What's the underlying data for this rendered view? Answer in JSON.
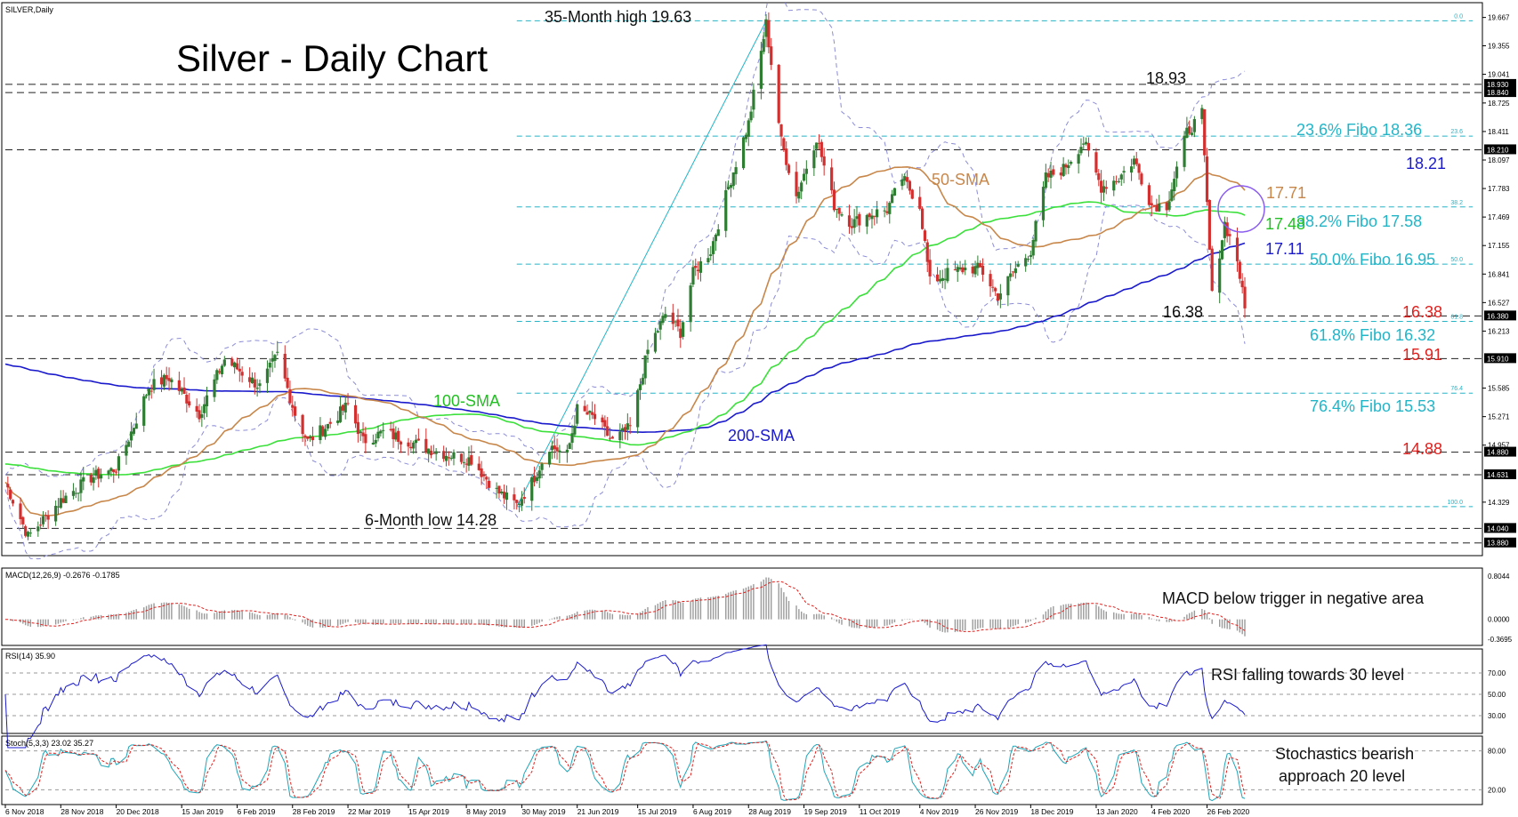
{
  "chart_data": {
    "type": "line",
    "symbol_label": "SILVER,Daily",
    "title": "Silver - Daily Chart",
    "colors": {
      "up_candle": "#2e7d32",
      "down_candle": "#d32f2f",
      "sma50": "#c8874a",
      "sma100": "#3be03b",
      "sma200": "#1a1acc",
      "bollinger": "#8c8cd6",
      "fibo": "#22b5c8",
      "level": "#222222",
      "red_label": "#e0201d"
    },
    "x_ticks": [
      "6 Nov 2018",
      "28 Nov 2018",
      "20 Dec 2018",
      "15 Jan 2019",
      "6 Feb 2019",
      "28 Feb 2019",
      "22 Mar 2019",
      "15 Apr 2019",
      "8 May 2019",
      "30 May 2019",
      "21 Jun 2019",
      "15 Jul 2019",
      "6 Aug 2019",
      "28 Aug 2019",
      "19 Sep 2019",
      "11 Oct 2019",
      "4 Nov 2019",
      "26 Nov 2019",
      "18 Dec 2019",
      "13 Jan 2020",
      "4 Feb 2020",
      "26 Feb 2020"
    ],
    "price_axis_ticks": [
      "19.667",
      "19.355",
      "19.041",
      "18.725",
      "18.411",
      "18.097",
      "17.783",
      "17.469",
      "17.155",
      "16.841",
      "16.527",
      "16.213",
      "15.585",
      "15.271",
      "14.957",
      "14.329"
    ],
    "price_range": [
      13.75,
      19.82
    ],
    "price_tags": [
      "18.930",
      "18.840",
      "18.210",
      "16.380",
      "15.910",
      "14.880",
      "14.631",
      "14.040",
      "13.880"
    ],
    "horizontal_levels": [
      18.93,
      18.84,
      18.21,
      16.38,
      15.91,
      14.88,
      14.631,
      14.04,
      13.88
    ],
    "fibo_levels": [
      {
        "tag": "0.0",
        "value": 19.63
      },
      {
        "tag": "23.6",
        "value": 18.36
      },
      {
        "tag": "38.2",
        "value": 17.58
      },
      {
        "tag": "50.0",
        "value": 16.95
      },
      {
        "tag": "61.8",
        "value": 16.32
      },
      {
        "tag": "76.4",
        "value": 15.53
      },
      {
        "tag": "100.0",
        "value": 14.28
      }
    ],
    "annotations": {
      "high": "35-Month high 19.63",
      "low": "6-Month low 14.28",
      "peak": "18.93",
      "fibo236": "23.6% Fibo 18.36",
      "lvl1821": "18.21",
      "sma50_val": "17.71",
      "fibo382": "38.2% Fibo 17.58",
      "sma100_val": "17.48",
      "sma200_val": "17.11",
      "fibo50": "50.0% Fibo 16.95",
      "support_left": "16.38",
      "support_right": "16.38",
      "fibo618": "61.8% Fibo 16.32",
      "lvl1591": "15.91",
      "fibo764": "76.4% Fibo 15.53",
      "lvl1488": "14.88",
      "sma50_label": "50-SMA",
      "sma100_label": "100-SMA",
      "sma200_label": "200-SMA"
    },
    "anchors": [
      [
        "2018-11-06",
        14.55
      ],
      [
        "2018-11-15",
        13.95
      ],
      [
        "2018-11-28",
        14.35
      ],
      [
        "2018-12-10",
        14.6
      ],
      [
        "2018-12-20",
        14.7
      ],
      [
        "2018-12-26",
        15.1
      ],
      [
        "2019-01-02",
        15.6
      ],
      [
        "2019-01-10",
        15.7
      ],
      [
        "2019-01-22",
        15.3
      ],
      [
        "2019-02-01",
        15.9
      ],
      [
        "2019-02-06",
        15.8
      ],
      [
        "2019-02-15",
        15.6
      ],
      [
        "2019-02-22",
        15.95
      ],
      [
        "2019-03-01",
        15.3
      ],
      [
        "2019-03-06",
        15.0
      ],
      [
        "2019-03-15",
        15.2
      ],
      [
        "2019-03-22",
        15.4
      ],
      [
        "2019-03-28",
        15.0
      ],
      [
        "2019-04-05",
        15.1
      ],
      [
        "2019-04-15",
        15.0
      ],
      [
        "2019-04-25",
        14.9
      ],
      [
        "2019-05-01",
        14.85
      ],
      [
        "2019-05-10",
        14.8
      ],
      [
        "2019-05-20",
        14.45
      ],
      [
        "2019-05-28",
        14.3
      ],
      [
        "2019-06-03",
        14.55
      ],
      [
        "2019-06-10",
        14.95
      ],
      [
        "2019-06-17",
        14.85
      ],
      [
        "2019-06-21",
        15.35
      ],
      [
        "2019-06-28",
        15.25
      ],
      [
        "2019-07-05",
        15.0
      ],
      [
        "2019-07-12",
        15.15
      ],
      [
        "2019-07-19",
        16.0
      ],
      [
        "2019-07-26",
        16.4
      ],
      [
        "2019-08-01",
        16.2
      ],
      [
        "2019-08-06",
        16.85
      ],
      [
        "2019-08-13",
        17.1
      ],
      [
        "2019-08-20",
        17.8
      ],
      [
        "2019-08-28",
        18.5
      ],
      [
        "2019-09-04",
        19.6
      ],
      [
        "2019-09-10",
        18.3
      ],
      [
        "2019-09-16",
        17.7
      ],
      [
        "2019-09-24",
        18.35
      ],
      [
        "2019-10-01",
        17.6
      ],
      [
        "2019-10-08",
        17.4
      ],
      [
        "2019-10-15",
        17.5
      ],
      [
        "2019-10-22",
        17.55
      ],
      [
        "2019-10-28",
        17.9
      ],
      [
        "2019-11-04",
        17.6
      ],
      [
        "2019-11-08",
        16.75
      ],
      [
        "2019-11-15",
        16.85
      ],
      [
        "2019-11-22",
        16.9
      ],
      [
        "2019-11-28",
        16.9
      ],
      [
        "2019-12-05",
        16.6
      ],
      [
        "2019-12-12",
        16.9
      ],
      [
        "2019-12-18",
        17.1
      ],
      [
        "2019-12-24",
        17.9
      ],
      [
        "2019-12-31",
        18.0
      ],
      [
        "2020-01-08",
        18.3
      ],
      [
        "2020-01-15",
        17.8
      ],
      [
        "2020-01-22",
        17.9
      ],
      [
        "2020-01-28",
        18.1
      ],
      [
        "2020-02-04",
        17.6
      ],
      [
        "2020-02-10",
        17.6
      ],
      [
        "2020-02-18",
        18.4
      ],
      [
        "2020-02-24",
        18.6
      ],
      [
        "2020-02-28",
        16.6
      ],
      [
        "2020-03-04",
        17.4
      ],
      [
        "2020-03-09",
        17.0
      ],
      [
        "2020-03-12",
        16.45
      ]
    ],
    "macd": {
      "label": "MACD(12,26,9) -0.2676 -0.1785",
      "ticks": [
        "0.8044",
        "0.0000",
        "-0.3695"
      ],
      "range": [
        -0.45,
        0.9
      ],
      "annotation": "MACD below trigger in negative area"
    },
    "rsi": {
      "label": "RSI(14) 35.90",
      "ticks": [
        "70.00",
        "50.00",
        "30.00"
      ],
      "range": [
        15,
        90
      ],
      "annotation": "RSI falling towards 30 level"
    },
    "stoch": {
      "label": "Stoch(5,3,3) 23.02 35.27",
      "ticks": [
        "80.00",
        "20.00"
      ],
      "range": [
        0,
        100
      ],
      "annotation_line1": "Stochastics bearish",
      "annotation_line2": "approach 20 level"
    }
  }
}
